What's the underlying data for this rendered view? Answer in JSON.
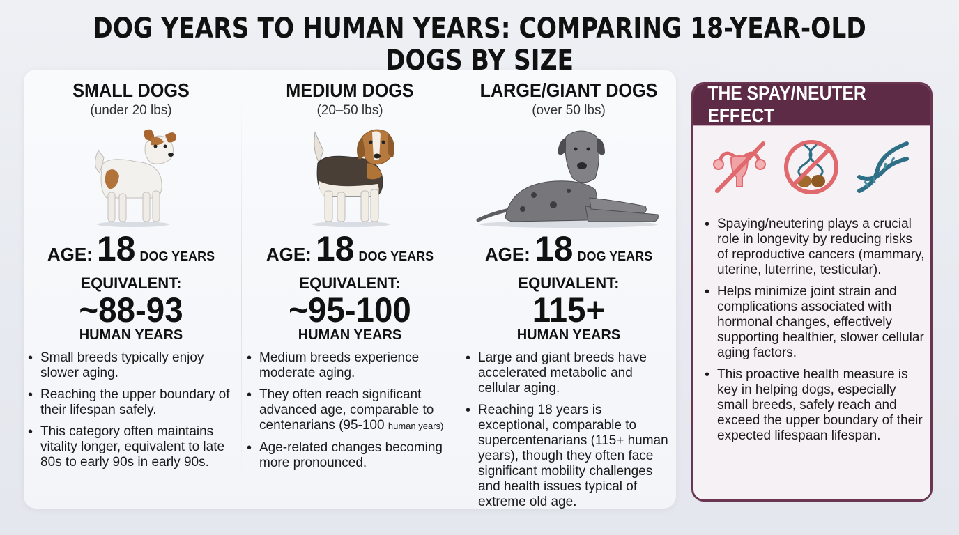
{
  "title": "DOG YEARS TO HUMAN YEARS: COMPARING 18-YEAR-OLD DOGS BY SIZE",
  "columns": [
    {
      "name": "SMALL DOGS",
      "weight": "(under 20 lbs)",
      "age_label": "AGE:",
      "age_value": "18",
      "age_unit": "DOG YEARS",
      "equiv_label": "EQUIVALENT:",
      "equiv_value": "~88-93",
      "equiv_unit": "HUMAN YEARS",
      "bullets": [
        "Small breeds typically enjoy slower aging.",
        "Reaching the upper boundary of their lifespan safely.",
        "This category often maintains vitality longer, equivalent to late 80s to early 90s in early 90s."
      ]
    },
    {
      "name": "MEDIUM DOGS",
      "weight": "(20–50 lbs)",
      "age_label": "AGE:",
      "age_value": "18",
      "age_unit": "DOG YEARS",
      "equiv_label": "EQUIVALENT:",
      "equiv_value": "~95-100",
      "equiv_unit": "HUMAN YEARS",
      "bullets": [
        "Medium breeds experience moderate aging.",
        "They often reach significant advanced age, comparable to centenarians (95-100",
        "Age-related changes becoming more pronounced."
      ],
      "bullet2_small": "human years)"
    },
    {
      "name": "LARGE/GIANT DOGS",
      "weight": "(over 50 lbs)",
      "age_label": "AGE:",
      "age_value": "18",
      "age_unit": "DOG YEARS",
      "equiv_label": "EQUIVALENT:",
      "equiv_value": "115+",
      "equiv_unit": "HUMAN YEARS",
      "bullets": [
        "Large and giant breeds have accelerated metabolic and cellular aging.",
        "Reaching 18 years is exceptional, comparable to supercentenarians (115+ human years), though they often face significant mobility challenges and health issues typical of extreme old age."
      ]
    }
  ],
  "spay": {
    "title": "THE SPAY/NEUTER EFFECT",
    "icons": [
      "crossed-uterus-icon",
      "crossed-dna-testes-icon",
      "dna-helix-icon"
    ],
    "bullets": [
      "Spaying/neutering plays a crucial role in longevity by reducing risks of reproductive cancers (mammary, uterine, luterrine, testicular).",
      "Helps minimize joint strain and complications associated with hormonal changes, effectively supporting healthier, slower cellular aging factors.",
      "This proactive health measure is key in helping dogs, especially small breeds, safely reach and exceed the upper boundary of their expected lifespaan lifespan."
    ]
  },
  "colors": {
    "accent": "#5e2b47",
    "prohibit": "#e0696d",
    "dna": "#2e6f86"
  }
}
